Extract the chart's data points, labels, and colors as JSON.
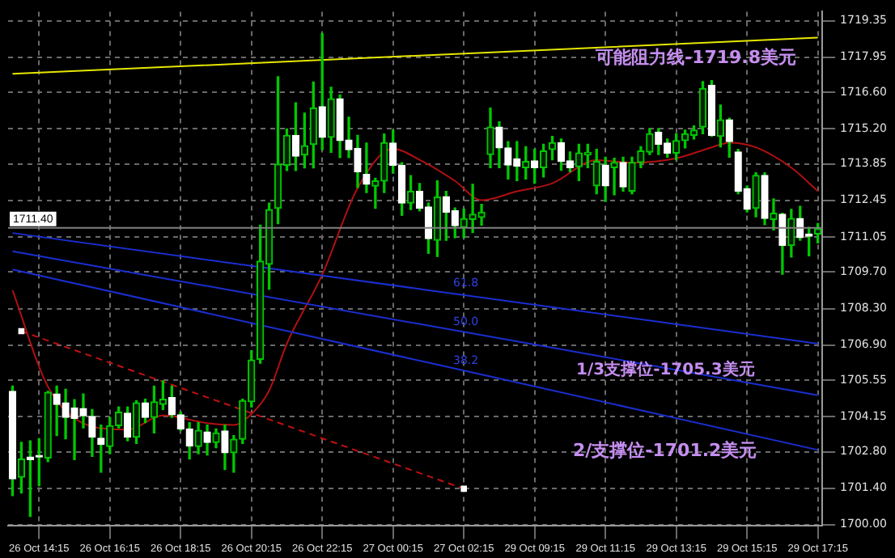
{
  "chart_data": {
    "type": "candlestick",
    "categories": [
      null,
      null,
      null,
      "26 Oct 14:15",
      null,
      null,
      null,
      null,
      null,
      null,
      null,
      "26 Oct 16:15",
      null,
      null,
      null,
      null,
      null,
      null,
      null,
      "26 Oct 18:15",
      null,
      null,
      null,
      null,
      null,
      null,
      null,
      "26 Oct 20:15",
      null,
      null,
      null,
      null,
      null,
      null,
      null,
      "26 Oct 22:15",
      null,
      null,
      null,
      null,
      null,
      null,
      null,
      "27 Oct 00:15",
      null,
      null,
      null,
      null,
      null,
      null,
      null,
      "27 Oct 02:15",
      null,
      null,
      null,
      null,
      null,
      null,
      null,
      "29 Oct 09:15",
      null,
      null,
      null,
      null,
      null,
      null,
      null,
      "29 Oct 11:15",
      null,
      null,
      null,
      null,
      null,
      null,
      null,
      "29 Oct 13:15",
      null,
      null,
      null,
      null,
      null,
      null,
      null,
      "29 Oct 15:15",
      null,
      null,
      null,
      null,
      null,
      null,
      null,
      "29 Oct 17:15"
    ],
    "ohlc": [
      [
        1705.12,
        1705.32,
        1701.12,
        1701.76
      ],
      [
        1701.82,
        1703.16,
        1701.22,
        1702.52
      ],
      [
        1702.6,
        1703.22,
        1700.32,
        1702.5
      ],
      [
        1702.62,
        1703.3,
        1701.5,
        1702.6
      ],
      [
        1702.56,
        1705.12,
        1702.42,
        1705.08
      ],
      [
        1705.02,
        1705.32,
        1703.42,
        1704.62
      ],
      [
        1704.68,
        1705.2,
        1703.3,
        1704.12
      ],
      [
        1704.48,
        1704.8,
        1702.5,
        1704.08
      ],
      [
        1704.46,
        1705.02,
        1703.72,
        1704.18
      ],
      [
        1704.16,
        1704.42,
        1702.62,
        1703.36
      ],
      [
        1703.32,
        1703.82,
        1702.02,
        1703.08
      ],
      [
        1703.0,
        1704.12,
        1702.72,
        1703.8
      ],
      [
        1703.8,
        1704.52,
        1703.72,
        1704.32
      ],
      [
        1704.28,
        1704.52,
        1703.22,
        1703.36
      ],
      [
        1703.36,
        1704.76,
        1703.12,
        1704.68
      ],
      [
        1704.68,
        1704.82,
        1703.92,
        1704.12
      ],
      [
        1704.12,
        1705.32,
        1703.52,
        1704.72
      ],
      [
        1704.62,
        1705.52,
        1704.42,
        1704.82
      ],
      [
        1704.88,
        1705.32,
        1704.12,
        1704.22
      ],
      [
        1704.22,
        1704.32,
        1703.62,
        1703.68
      ],
      [
        1703.68,
        1703.92,
        1702.52,
        1703.02
      ],
      [
        1703.0,
        1703.92,
        1702.72,
        1703.62
      ],
      [
        1703.56,
        1703.82,
        1702.68,
        1703.16
      ],
      [
        1703.16,
        1703.68,
        1702.96,
        1703.52
      ],
      [
        1703.6,
        1703.82,
        1702.12,
        1702.76
      ],
      [
        1702.76,
        1703.42,
        1702.02,
        1703.28
      ],
      [
        1703.28,
        1704.82,
        1703.12,
        1704.76
      ],
      [
        1704.72,
        1706.68,
        1704.52,
        1706.32
      ],
      [
        1706.35,
        1711.5,
        1706.2,
        1710.12
      ],
      [
        1710.0,
        1712.35,
        1709.04,
        1712.1
      ],
      [
        1712.15,
        1717.2,
        1711.56,
        1713.85
      ],
      [
        1713.8,
        1715.2,
        1713.6,
        1714.95
      ],
      [
        1714.95,
        1716.2,
        1713.6,
        1714.15
      ],
      [
        1714.2,
        1715.8,
        1713.7,
        1714.55
      ],
      [
        1714.6,
        1717.0,
        1713.7,
        1716.0
      ],
      [
        1716.05,
        1718.86,
        1714.4,
        1714.87
      ],
      [
        1714.87,
        1716.8,
        1714.3,
        1716.35
      ],
      [
        1716.35,
        1716.5,
        1714.1,
        1714.75
      ],
      [
        1714.77,
        1715.65,
        1714.1,
        1714.4
      ],
      [
        1714.45,
        1714.95,
        1712.95,
        1713.55
      ],
      [
        1713.45,
        1714.65,
        1712.75,
        1713.07
      ],
      [
        1713.0,
        1713.3,
        1712.15,
        1713.2
      ],
      [
        1713.2,
        1715.0,
        1712.75,
        1714.67
      ],
      [
        1714.65,
        1715.15,
        1713.5,
        1713.8
      ],
      [
        1713.8,
        1713.9,
        1711.88,
        1712.35
      ],
      [
        1712.35,
        1713.4,
        1712.1,
        1712.8
      ],
      [
        1712.8,
        1713.1,
        1712.05,
        1712.15
      ],
      [
        1712.2,
        1712.35,
        1710.42,
        1710.98
      ],
      [
        1710.92,
        1713.2,
        1710.3,
        1712.58
      ],
      [
        1712.6,
        1712.8,
        1710.92,
        1712.0
      ],
      [
        1712.05,
        1712.16,
        1711.02,
        1711.48
      ],
      [
        1711.42,
        1712.12,
        1711.02,
        1711.75
      ],
      [
        1711.72,
        1713.07,
        1711.22,
        1711.92
      ],
      [
        1711.8,
        1712.3,
        1711.5,
        1712.0
      ],
      [
        1714.21,
        1716.0,
        1713.71,
        1715.27
      ],
      [
        1715.27,
        1715.47,
        1713.71,
        1714.47
      ],
      [
        1714.47,
        1714.71,
        1713.27,
        1713.81
      ],
      [
        1714.05,
        1714.71,
        1713.21,
        1713.77
      ],
      [
        1713.71,
        1714.51,
        1713.27,
        1713.95
      ],
      [
        1713.97,
        1714.41,
        1713.11,
        1713.71
      ],
      [
        1713.71,
        1714.61,
        1713.35,
        1714.35
      ],
      [
        1714.41,
        1714.91,
        1714.01,
        1714.67
      ],
      [
        1714.67,
        1714.81,
        1713.61,
        1713.95
      ],
      [
        1713.97,
        1714.31,
        1713.55,
        1713.71
      ],
      [
        1713.75,
        1714.61,
        1713.21,
        1714.27
      ],
      [
        1714.2,
        1714.61,
        1713.71,
        1714.3
      ],
      [
        1713.01,
        1714.41,
        1712.71,
        1713.95
      ],
      [
        1713.81,
        1714.11,
        1712.41,
        1713.01
      ],
      [
        1713.71,
        1714.07,
        1712.67,
        1713.91
      ],
      [
        1713.91,
        1714.11,
        1712.81,
        1712.97
      ],
      [
        1712.81,
        1714.11,
        1712.71,
        1713.91
      ],
      [
        1713.91,
        1714.51,
        1713.71,
        1714.35
      ],
      [
        1714.31,
        1715.21,
        1714.21,
        1715.01
      ],
      [
        1715.07,
        1715.21,
        1714.21,
        1714.61
      ],
      [
        1714.65,
        1714.81,
        1714.11,
        1714.27
      ],
      [
        1714.27,
        1715.01,
        1714.01,
        1714.75
      ],
      [
        1714.75,
        1715.15,
        1714.47,
        1715.01
      ],
      [
        1714.95,
        1715.31,
        1714.81,
        1715.15
      ],
      [
        1715.27,
        1717.01,
        1715.01,
        1716.75
      ],
      [
        1716.87,
        1717.05,
        1714.91,
        1714.95
      ],
      [
        1714.91,
        1716.11,
        1714.51,
        1715.55
      ],
      [
        1715.55,
        1715.61,
        1714.11,
        1714.71
      ],
      [
        1714.31,
        1714.41,
        1712.71,
        1712.81
      ],
      [
        1712.91,
        1713.01,
        1712.01,
        1712.11
      ],
      [
        1712.15,
        1713.51,
        1711.82,
        1713.41
      ],
      [
        1713.41,
        1713.51,
        1711.52,
        1711.76
      ],
      [
        1711.72,
        1712.51,
        1711.32,
        1711.96
      ],
      [
        1711.92,
        1711.96,
        1709.62,
        1710.72
      ],
      [
        1710.72,
        1712.11,
        1710.28,
        1711.76
      ],
      [
        1711.76,
        1712.22,
        1710.92,
        1711.02
      ],
      [
        1711.16,
        1711.42,
        1710.32,
        1711.08
      ],
      [
        1711.16,
        1711.56,
        1710.82,
        1711.36
      ]
    ],
    "series": [
      {
        "type": "line",
        "color": "#e6e600",
        "values": [
          1717.31,
          null,
          null,
          null,
          null,
          null,
          null,
          null,
          null,
          null,
          null,
          null,
          null,
          null,
          null,
          null,
          null,
          null,
          null,
          null,
          null,
          null,
          null,
          null,
          null,
          null,
          null,
          null,
          null,
          null,
          null,
          null,
          null,
          null,
          null,
          null,
          null,
          null,
          null,
          null,
          null,
          null,
          null,
          null,
          null,
          null,
          null,
          null,
          null,
          null,
          null,
          null,
          null,
          null,
          null,
          null,
          null,
          null,
          null,
          null,
          null,
          null,
          null,
          null,
          null,
          null,
          null,
          null,
          null,
          null,
          null,
          null,
          null,
          null,
          null,
          null,
          null,
          null,
          null,
          null,
          null,
          null,
          null,
          null,
          null,
          null,
          null,
          null,
          null,
          null,
          null,
          1718.7
        ]
      },
      {
        "type": "line",
        "color": "#1a2ed0",
        "values": [
          1711.2,
          null,
          null,
          null,
          null,
          null,
          null,
          null,
          null,
          null,
          null,
          null,
          null,
          null,
          null,
          null,
          null,
          null,
          null,
          null,
          null,
          null,
          null,
          null,
          null,
          null,
          null,
          null,
          null,
          null,
          null,
          null,
          null,
          null,
          null,
          null,
          null,
          null,
          null,
          null,
          null,
          null,
          null,
          null,
          null,
          null,
          null,
          null,
          null,
          null,
          null,
          null,
          null,
          null,
          null,
          null,
          null,
          null,
          null,
          null,
          null,
          null,
          null,
          null,
          null,
          null,
          null,
          null,
          null,
          null,
          null,
          null,
          null,
          null,
          null,
          null,
          null,
          null,
          null,
          null,
          null,
          null,
          null,
          null,
          null,
          null,
          null,
          null,
          null,
          null,
          null,
          1706.95
        ]
      },
      {
        "type": "line",
        "color": "#1a2ed0",
        "values": [
          1710.5,
          null,
          null,
          null,
          null,
          null,
          null,
          null,
          null,
          null,
          null,
          null,
          null,
          null,
          null,
          null,
          null,
          null,
          null,
          null,
          null,
          null,
          null,
          null,
          null,
          null,
          null,
          null,
          null,
          null,
          null,
          null,
          null,
          null,
          null,
          null,
          null,
          null,
          null,
          null,
          null,
          null,
          null,
          null,
          null,
          null,
          null,
          null,
          null,
          null,
          null,
          null,
          null,
          null,
          null,
          null,
          null,
          null,
          null,
          null,
          null,
          null,
          null,
          null,
          null,
          null,
          null,
          null,
          null,
          null,
          null,
          null,
          null,
          null,
          null,
          null,
          null,
          null,
          null,
          null,
          null,
          null,
          null,
          null,
          null,
          null,
          null,
          null,
          null,
          null,
          null,
          1704.97
        ]
      },
      {
        "type": "line",
        "color": "#1a2ed0",
        "values": [
          1709.8,
          null,
          null,
          null,
          null,
          null,
          null,
          null,
          null,
          null,
          null,
          null,
          null,
          null,
          null,
          null,
          null,
          null,
          null,
          null,
          null,
          null,
          null,
          null,
          null,
          null,
          null,
          null,
          null,
          null,
          null,
          null,
          null,
          null,
          null,
          null,
          null,
          null,
          null,
          null,
          null,
          null,
          null,
          null,
          null,
          null,
          null,
          null,
          null,
          null,
          null,
          null,
          null,
          null,
          null,
          null,
          null,
          null,
          null,
          null,
          null,
          null,
          null,
          null,
          null,
          null,
          null,
          null,
          null,
          null,
          null,
          null,
          null,
          null,
          null,
          null,
          null,
          null,
          null,
          null,
          null,
          null,
          null,
          null,
          null,
          null,
          null,
          null,
          null,
          null,
          null,
          1702.87
        ]
      },
      {
        "type": "line",
        "color": "#b01010",
        "values": [
          1709.0,
          null,
          null,
          null,
          1705.3,
          null,
          null,
          null,
          null,
          1703.77,
          null,
          null,
          null,
          1703.65,
          null,
          null,
          null,
          1704.19,
          null,
          null,
          null,
          null,
          1703.9,
          null,
          null,
          1703.83,
          null,
          1704.25,
          null,
          1705.15,
          null,
          1706.95,
          null,
          null,
          null,
          1709.6,
          null,
          null,
          null,
          1712.93,
          null,
          null,
          null,
          1714.43,
          null,
          null,
          1714.01,
          null,
          null,
          null,
          1713.2,
          null,
          null,
          1712.46,
          null,
          null,
          null,
          1712.8,
          null,
          null,
          null,
          1713.11,
          null,
          null,
          null,
          null,
          1714.0,
          null,
          null,
          null,
          1713.9,
          null,
          null,
          null,
          null,
          1714.07,
          null,
          null,
          null,
          1714.49,
          null,
          1714.67,
          null,
          null,
          1714.49,
          null,
          null,
          null,
          1713.71,
          null,
          null,
          1712.81
        ]
      },
      {
        "type": "line",
        "color": "#c01010",
        "line_style": "dashed",
        "marker": "square",
        "values": [
          null,
          1707.43,
          null,
          null,
          null,
          null,
          null,
          null,
          null,
          null,
          null,
          null,
          null,
          null,
          null,
          null,
          null,
          null,
          null,
          null,
          null,
          null,
          null,
          null,
          null,
          null,
          null,
          null,
          null,
          null,
          null,
          null,
          null,
          null,
          null,
          null,
          null,
          null,
          null,
          null,
          null,
          null,
          null,
          null,
          null,
          null,
          null,
          null,
          null,
          null,
          null,
          1701.38,
          null,
          null,
          null,
          null,
          null,
          null,
          null,
          null,
          null,
          null,
          null,
          null,
          null,
          null,
          null,
          null,
          null,
          null,
          null,
          null,
          null,
          null,
          null,
          null,
          null,
          null,
          null,
          null,
          null,
          null,
          null,
          null,
          null,
          null,
          null,
          null,
          null,
          null,
          null,
          null
        ]
      }
    ],
    "ylim": [
      1699.95,
      1719.7
    ],
    "yticks": [
      {
        "value": 1700,
        "label": "1700.00"
      },
      {
        "value": 1701.4,
        "label": "1701.40"
      },
      {
        "value": 1702.8,
        "label": "1702.80"
      },
      {
        "value": 1704.15,
        "label": "1704.15"
      },
      {
        "value": 1705.55,
        "label": "1705.55"
      },
      {
        "value": 1706.9,
        "label": "1706.90"
      },
      {
        "value": 1708.3,
        "label": "1708.30"
      },
      {
        "value": 1709.7,
        "label": "1709.70"
      },
      {
        "value": 1711.05,
        "label": "1711.05"
      },
      {
        "value": 1712.45,
        "label": "1712.45"
      },
      {
        "value": 1713.85,
        "label": "1713.85"
      },
      {
        "value": 1715.2,
        "label": "1715.20"
      },
      {
        "value": 1716.6,
        "label": "1716.60"
      },
      {
        "value": 1717.95,
        "label": "1717.95"
      },
      {
        "value": 1719.35,
        "label": "1719.35"
      }
    ],
    "ref_lines": [
      {
        "axis": "y",
        "value": 1711.4,
        "label": "1711.40",
        "color": "#808080"
      }
    ],
    "annotations": [
      "可能阻力线-1719.8美元",
      "1/3支撑位-1705.3美元",
      "2/支撑位-1701.2美元",
      "61.8",
      "50.0",
      "38.2"
    ],
    "grid": true,
    "legend": false
  }
}
